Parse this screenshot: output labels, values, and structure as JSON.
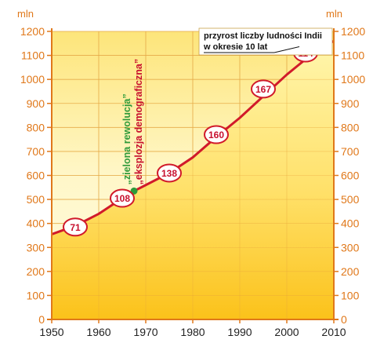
{
  "chart_data": {
    "type": "area",
    "x": [
      1950,
      1955,
      1960,
      1965,
      1967,
      1970,
      1975,
      1980,
      1985,
      1990,
      1995,
      2000,
      2005,
      2010
    ],
    "y": [
      355,
      390,
      440,
      505,
      530,
      560,
      610,
      675,
      760,
      840,
      930,
      1020,
      1100,
      1160
    ],
    "xlim": [
      1950,
      2010
    ],
    "ylim": [
      0,
      1200
    ],
    "x_ticks": [
      "1950",
      "1960",
      "1970",
      "1980",
      "1990",
      "2000",
      "2010"
    ],
    "y_ticks": [
      "0",
      "100",
      "200",
      "300",
      "400",
      "500",
      "600",
      "700",
      "800",
      "900",
      "1000",
      "1100",
      "1200"
    ],
    "unit_left": "mln",
    "unit_right": "mln",
    "grid": true,
    "increments": [
      {
        "x": 1955,
        "y": 385,
        "value": "71"
      },
      {
        "x": 1965,
        "y": 505,
        "value": "108"
      },
      {
        "x": 1975,
        "y": 610,
        "value": "138"
      },
      {
        "x": 1985,
        "y": 770,
        "value": "160"
      },
      {
        "x": 1995,
        "y": 960,
        "value": "167"
      },
      {
        "x": 2004,
        "y": 1110,
        "value": "114"
      }
    ],
    "legend": {
      "line1": "przyrost liczby ludności Indii",
      "line2": "w okresie 10 lat",
      "placement": "top-right"
    },
    "annotations": [
      {
        "x": 1967.5,
        "y": 535,
        "text": "„zielona rewolucja”",
        "color": "#2e9a3a"
      },
      {
        "x": 1967.5,
        "y": 535,
        "text": "„eksplozja demograficzna”",
        "color": "#c8102e"
      }
    ],
    "colors": {
      "area_top": "#fff7b0",
      "area_bottom": "#f9b800",
      "line": "#d11a2a",
      "grid": "#e6b45a",
      "axis": "#e0781a",
      "marker": "#2e9a3a"
    }
  }
}
